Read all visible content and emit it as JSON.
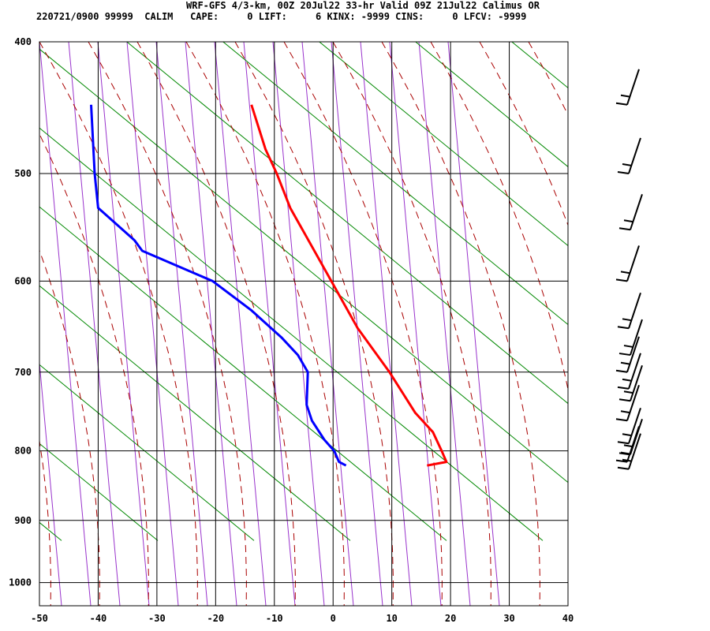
{
  "header": {
    "title_line": "WRF-GFS 4/3-km, 00Z 20Jul22 33-hr Valid 09Z 21Jul22 Calimus OR",
    "stats_line": "220721/0900 99999  CALIM   CAPE:     0 LIFT:     6 KINX: -9999 CINS:     0 LFCV: -9999"
  },
  "chart_data": {
    "type": "line",
    "title": "WRF-GFS 4/3-km, 00Z 20Jul22 33-hr Valid 09Z 21Jul22 Calimus OR",
    "xlabel": "",
    "ylabel": "",
    "x_axis": {
      "range": [
        -50,
        40
      ],
      "ticks": [
        "-50",
        "-40",
        "-30",
        "-20",
        "-10",
        "0",
        "10",
        "20",
        "30",
        "40"
      ]
    },
    "y_axis": {
      "scale": "log",
      "range_hpa": [
        400,
        1040
      ],
      "ticks": [
        "400",
        "500",
        "600",
        "700",
        "800",
        "900",
        "1000"
      ]
    },
    "grid": true,
    "series": [
      {
        "color": "#ff0000",
        "points": [
          {
            "p": 820,
            "x": 16.0
          },
          {
            "p": 815,
            "x": 19.3
          },
          {
            "p": 800,
            "x": 18.5
          },
          {
            "p": 775,
            "x": 17.0
          },
          {
            "p": 750,
            "x": 14.0
          },
          {
            "p": 700,
            "x": 9.6
          },
          {
            "p": 650,
            "x": 4.2
          },
          {
            "p": 600,
            "x": -0.3
          },
          {
            "p": 550,
            "x": -5.2
          },
          {
            "p": 530,
            "x": -7.3
          },
          {
            "p": 500,
            "x": -9.6
          },
          {
            "p": 480,
            "x": -11.5
          },
          {
            "p": 445,
            "x": -13.9
          }
        ]
      },
      {
        "color": "#0000ff",
        "points": [
          {
            "p": 820,
            "x": 2.2
          },
          {
            "p": 815,
            "x": 1.0
          },
          {
            "p": 800,
            "x": 0.2
          },
          {
            "p": 785,
            "x": -1.5
          },
          {
            "p": 760,
            "x": -3.6
          },
          {
            "p": 740,
            "x": -4.5
          },
          {
            "p": 700,
            "x": -4.3
          },
          {
            "p": 680,
            "x": -6.0
          },
          {
            "p": 660,
            "x": -8.8
          },
          {
            "p": 630,
            "x": -14.0
          },
          {
            "p": 600,
            "x": -20.5
          },
          {
            "p": 570,
            "x": -32.5
          },
          {
            "p": 560,
            "x": -33.8
          },
          {
            "p": 530,
            "x": -40.0
          },
          {
            "p": 500,
            "x": -40.6
          },
          {
            "p": 445,
            "x": -41.2
          }
        ]
      }
    ],
    "wind_barbs": [
      {
        "p": 445
      },
      {
        "p": 500
      },
      {
        "p": 550
      },
      {
        "p": 600
      },
      {
        "p": 650
      },
      {
        "p": 680
      },
      {
        "p": 700
      },
      {
        "p": 720
      },
      {
        "p": 735
      },
      {
        "p": 760
      },
      {
        "p": 790
      },
      {
        "p": 805
      },
      {
        "p": 815
      },
      {
        "p": 825
      }
    ]
  }
}
